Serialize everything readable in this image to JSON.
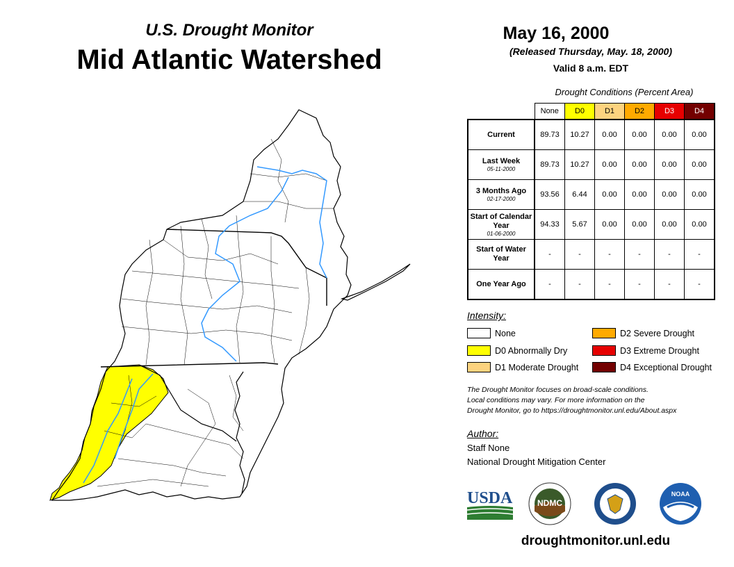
{
  "header": {
    "subtitle": "U.S. Drought Monitor",
    "title": "Mid Atlantic Watershed",
    "date": "May 16, 2000",
    "released": "(Released Thursday, May. 18, 2000)",
    "valid": "Valid 8 a.m. EDT"
  },
  "stats_table": {
    "caption": "Drought Conditions (Percent Area)",
    "columns": [
      {
        "label": "None",
        "color": "#ffffff",
        "text_color": "#000000"
      },
      {
        "label": "D0",
        "color": "#ffff00",
        "text_color": "#000000"
      },
      {
        "label": "D1",
        "color": "#fcd37f",
        "text_color": "#000000"
      },
      {
        "label": "D2",
        "color": "#ffaa00",
        "text_color": "#000000"
      },
      {
        "label": "D3",
        "color": "#e60000",
        "text_color": "#ffffff"
      },
      {
        "label": "D4",
        "color": "#730000",
        "text_color": "#ffffff"
      }
    ],
    "rows": [
      {
        "label": "Current",
        "sub": "",
        "values": [
          "89.73",
          "10.27",
          "0.00",
          "0.00",
          "0.00",
          "0.00"
        ]
      },
      {
        "label": "Last Week",
        "sub": "05-11-2000",
        "values": [
          "89.73",
          "10.27",
          "0.00",
          "0.00",
          "0.00",
          "0.00"
        ]
      },
      {
        "label": "3 Months Ago",
        "sub": "02-17-2000",
        "values": [
          "93.56",
          "6.44",
          "0.00",
          "0.00",
          "0.00",
          "0.00"
        ]
      },
      {
        "label": "Start of Calendar Year",
        "sub": "01-06-2000",
        "values": [
          "94.33",
          "5.67",
          "0.00",
          "0.00",
          "0.00",
          "0.00"
        ]
      },
      {
        "label": "Start of Water Year",
        "sub": "",
        "values": [
          "-",
          "-",
          "-",
          "-",
          "-",
          "-"
        ]
      },
      {
        "label": "One Year Ago",
        "sub": "",
        "values": [
          "-",
          "-",
          "-",
          "-",
          "-",
          "-"
        ]
      }
    ]
  },
  "legend": {
    "title": "Intensity:",
    "items": [
      {
        "label": "None",
        "color": "#ffffff"
      },
      {
        "label": "D0 Abnormally Dry",
        "color": "#ffff00"
      },
      {
        "label": "D1 Moderate Drought",
        "color": "#fcd37f"
      },
      {
        "label": "D2 Severe Drought",
        "color": "#ffaa00"
      },
      {
        "label": "D3 Extreme Drought",
        "color": "#e60000"
      },
      {
        "label": "D4 Exceptional Drought",
        "color": "#730000"
      }
    ]
  },
  "note": {
    "line1": "The Drought Monitor focuses on broad-scale conditions.",
    "line2": "Local conditions may vary. For more information on the",
    "line3": "Drought Monitor, go to https://droughtmonitor.unl.edu/About.aspx"
  },
  "author": {
    "label": "Author:",
    "name": "Staff None",
    "org": "National Drought Mitigation Center"
  },
  "logos": {
    "usda": "USDA",
    "ndmc": "NDMC",
    "commerce_icon": "eagle-seal-icon",
    "noaa": "NOAA"
  },
  "website": "droughtmonitor.unl.edu",
  "map_colors": {
    "d0": "#ffff00",
    "river": "#3399ff",
    "outline": "#000000"
  }
}
